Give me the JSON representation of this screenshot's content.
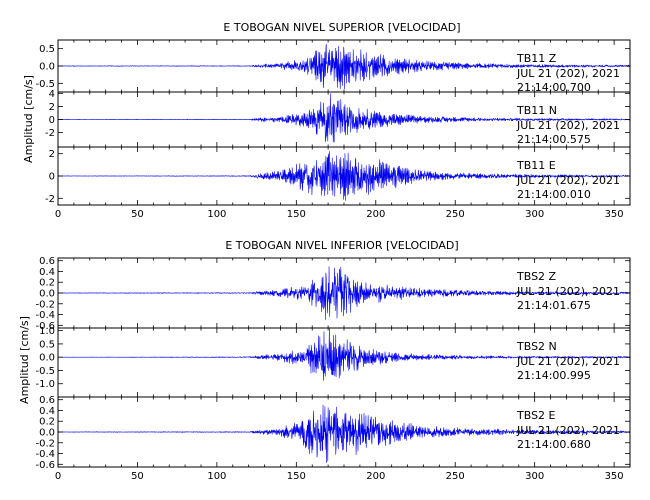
{
  "chart_data": [
    {
      "type": "line",
      "title": "E TOBOGAN NIVEL SUPERIOR [VELOCIDAD]",
      "ylabel": "Amplitud [cm/s]",
      "xlabel": "",
      "xlim": [
        0,
        360
      ],
      "x_ticks": [
        "0",
        "50",
        "100",
        "150",
        "200",
        "250",
        "300",
        "350"
      ],
      "line_color": "#0000ee",
      "panels": [
        {
          "station": "TB11",
          "component": "Z",
          "date": "JUL 21 (202), 2021",
          "time": "21:14:00.700",
          "ylim": [
            -0.75,
            0.75
          ],
          "y_ticks": [
            "-0.5",
            "0.0",
            "0.5"
          ],
          "envelope": [
            [
              0,
              0.01
            ],
            [
              120,
              0.01
            ],
            [
              125,
              0.04
            ],
            [
              140,
              0.09
            ],
            [
              155,
              0.22
            ],
            [
              165,
              0.6
            ],
            [
              170,
              0.75
            ],
            [
              178,
              0.75
            ],
            [
              185,
              0.55
            ],
            [
              195,
              0.42
            ],
            [
              210,
              0.28
            ],
            [
              230,
              0.16
            ],
            [
              260,
              0.08
            ],
            [
              300,
              0.05
            ],
            [
              360,
              0.03
            ]
          ]
        },
        {
          "station": "TB11",
          "component": "N",
          "date": "JUL 21 (202), 2021",
          "time": "21:14:00.575",
          "ylim": [
            -4.2,
            4.2
          ],
          "y_ticks": [
            "-2",
            "0",
            "2",
            "4"
          ],
          "envelope": [
            [
              0,
              0.04
            ],
            [
              120,
              0.05
            ],
            [
              125,
              0.25
            ],
            [
              140,
              0.5
            ],
            [
              155,
              1.2
            ],
            [
              165,
              3.2
            ],
            [
              170,
              4.2
            ],
            [
              176,
              4.0
            ],
            [
              185,
              2.4
            ],
            [
              195,
              1.6
            ],
            [
              210,
              1.0
            ],
            [
              230,
              0.55
            ],
            [
              260,
              0.3
            ],
            [
              300,
              0.2
            ],
            [
              360,
              0.12
            ]
          ]
        },
        {
          "station": "TB11",
          "component": "E",
          "date": "JUL 21 (202), 2021",
          "time": "21:14:00.010",
          "ylim": [
            -2.6,
            2.6
          ],
          "y_ticks": [
            "-2",
            "0",
            "2"
          ],
          "envelope": [
            [
              0,
              0.02
            ],
            [
              120,
              0.04
            ],
            [
              125,
              0.2
            ],
            [
              140,
              0.5
            ],
            [
              150,
              1.1
            ],
            [
              160,
              1.8
            ],
            [
              170,
              2.4
            ],
            [
              180,
              2.3
            ],
            [
              190,
              2.0
            ],
            [
              200,
              1.6
            ],
            [
              210,
              1.2
            ],
            [
              225,
              0.6
            ],
            [
              250,
              0.3
            ],
            [
              300,
              0.15
            ],
            [
              360,
              0.08
            ]
          ]
        }
      ]
    },
    {
      "type": "line",
      "title": "E TOBOGAN NIVEL INFERIOR [VELOCIDAD]",
      "ylabel": "Amplitud [cm/s]",
      "xlabel": "",
      "xlim": [
        0,
        360
      ],
      "x_ticks": [
        "0",
        "50",
        "100",
        "150",
        "200",
        "250",
        "300",
        "350"
      ],
      "line_color": "#0000ee",
      "panels": [
        {
          "station": "TBS2",
          "component": "Z",
          "date": "JUL 21 (202), 2021",
          "time": "21:14:01.675",
          "ylim": [
            -0.65,
            0.65
          ],
          "y_ticks": [
            "-0.6",
            "-0.4",
            "-0.2",
            "0.0",
            "0.2",
            "0.4",
            "0.6"
          ],
          "envelope": [
            [
              0,
              0.005
            ],
            [
              120,
              0.01
            ],
            [
              125,
              0.03
            ],
            [
              140,
              0.07
            ],
            [
              155,
              0.15
            ],
            [
              165,
              0.4
            ],
            [
              170,
              0.65
            ],
            [
              178,
              0.5
            ],
            [
              185,
              0.35
            ],
            [
              195,
              0.22
            ],
            [
              210,
              0.14
            ],
            [
              230,
              0.09
            ],
            [
              260,
              0.05
            ],
            [
              300,
              0.03
            ],
            [
              360,
              0.02
            ]
          ]
        },
        {
          "station": "TBS2",
          "component": "N",
          "date": "JUL 21 (202), 2021",
          "time": "21:14:00.995",
          "ylim": [
            -1.5,
            1.1
          ],
          "y_ticks": [
            "-1.0",
            "-0.5",
            "0.0",
            "0.5",
            "1.0"
          ],
          "envelope": [
            [
              0,
              0.005
            ],
            [
              120,
              0.02
            ],
            [
              125,
              0.06
            ],
            [
              140,
              0.15
            ],
            [
              155,
              0.4
            ],
            [
              165,
              0.9
            ],
            [
              170,
              1.2
            ],
            [
              176,
              0.9
            ],
            [
              185,
              0.6
            ],
            [
              195,
              0.35
            ],
            [
              210,
              0.2
            ],
            [
              230,
              0.12
            ],
            [
              260,
              0.07
            ],
            [
              300,
              0.04
            ],
            [
              360,
              0.03
            ]
          ]
        },
        {
          "station": "TBS2",
          "component": "E",
          "date": "JUL 21 (202), 2021",
          "time": "21:14:00.680",
          "ylim": [
            -0.65,
            0.65
          ],
          "y_ticks": [
            "-0.6",
            "-0.4",
            "-0.2",
            "0.0",
            "0.2",
            "0.4",
            "0.6"
          ],
          "envelope": [
            [
              0,
              0.005
            ],
            [
              120,
              0.01
            ],
            [
              125,
              0.03
            ],
            [
              140,
              0.08
            ],
            [
              150,
              0.2
            ],
            [
              160,
              0.45
            ],
            [
              168,
              0.6
            ],
            [
              180,
              0.5
            ],
            [
              190,
              0.4
            ],
            [
              200,
              0.3
            ],
            [
              215,
              0.2
            ],
            [
              230,
              0.12
            ],
            [
              260,
              0.07
            ],
            [
              300,
              0.04
            ],
            [
              360,
              0.02
            ]
          ]
        }
      ]
    }
  ]
}
